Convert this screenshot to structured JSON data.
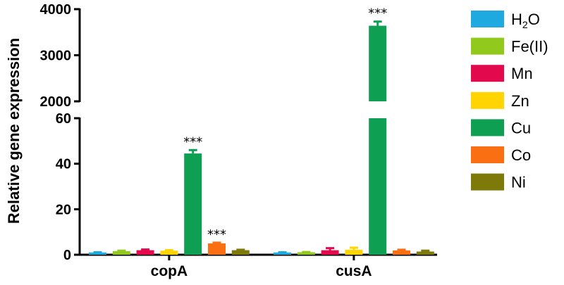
{
  "chart_data": {
    "type": "bar",
    "ylabel": "Relative gene expression",
    "categories": [
      "copA",
      "cusA"
    ],
    "axis_break": {
      "lower_ylim": [
        0,
        60
      ],
      "upper_ylim": [
        2000,
        4000
      ],
      "lower_ticks": [
        "0",
        "20",
        "40",
        "60"
      ],
      "upper_ticks": [
        "2000",
        "3000",
        "4000"
      ]
    },
    "series": [
      {
        "name": "H2O",
        "label_html": "H<sub>2</sub>O",
        "color": "#1fa9e1",
        "values": [
          1.0,
          1.0
        ],
        "errors": [
          0.1,
          0.1
        ],
        "sig": [
          "",
          ""
        ]
      },
      {
        "name": "Fe(II)",
        "label_html": "Fe(II)",
        "color": "#92c91d",
        "values": [
          1.6,
          1.1
        ],
        "errors": [
          0.2,
          0.1
        ],
        "sig": [
          "",
          ""
        ]
      },
      {
        "name": "Mn",
        "label_html": "Mn",
        "color": "#e3094d",
        "values": [
          2.0,
          2.0
        ],
        "errors": [
          0.3,
          0.9
        ],
        "sig": [
          "",
          ""
        ]
      },
      {
        "name": "Zn",
        "label_html": "Zn",
        "color": "#ffd400",
        "values": [
          1.8,
          2.2
        ],
        "errors": [
          0.2,
          0.9
        ],
        "sig": [
          "",
          ""
        ]
      },
      {
        "name": "Cu",
        "label_html": "Cu",
        "color": "#0f9f52",
        "values": [
          44.5,
          3640
        ],
        "errors": [
          1.5,
          90
        ],
        "sig": [
          "***",
          "***"
        ]
      },
      {
        "name": "Co",
        "label_html": "Co",
        "color": "#f96f12",
        "values": [
          5.0,
          1.9
        ],
        "errors": [
          0.3,
          0.3
        ],
        "sig": [
          "***",
          ""
        ]
      },
      {
        "name": "Ni",
        "label_html": "Ni",
        "color": "#7d7a09",
        "values": [
          2.0,
          1.4
        ],
        "errors": [
          0.2,
          0.4
        ],
        "sig": [
          "",
          ""
        ]
      }
    ]
  }
}
